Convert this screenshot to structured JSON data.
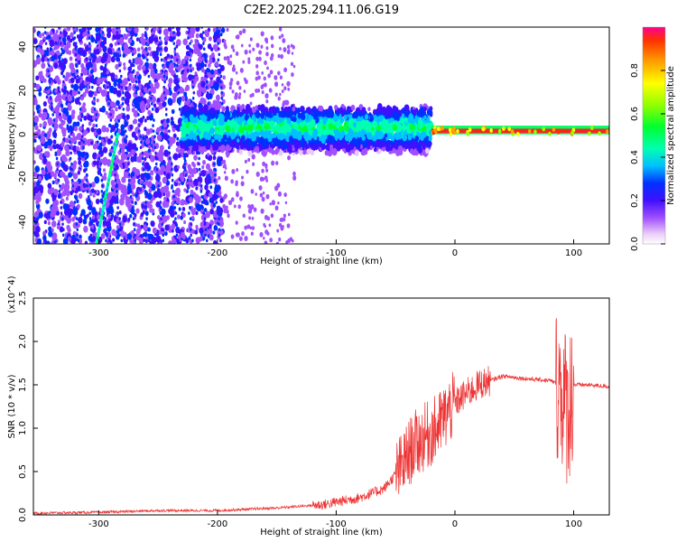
{
  "chart_data": [
    {
      "type": "heatmap",
      "title": "C2E2.2025.294.11.06.G19",
      "xlabel": "Height of straight line (km)",
      "ylabel": "Frequency (Hz)",
      "xlim": [
        -355,
        130
      ],
      "ylim": [
        -50,
        49
      ],
      "xticks": [
        -300,
        -200,
        -100,
        0,
        100
      ],
      "yticks": [
        -40,
        -20,
        0,
        20,
        40
      ],
      "colorbar": {
        "label": "Normalized spectral amplitude",
        "range": [
          0.0,
          1.0
        ],
        "ticks": [
          "0.0",
          "0.2",
          "0.4",
          "0.6",
          "0.8"
        ]
      },
      "regions": [
        {
          "name": "scattered noise",
          "x_range": [
            -355,
            -195
          ],
          "freq_range": [
            -50,
            49
          ],
          "amplitude": "0.05-0.3"
        },
        {
          "name": "sparse noise",
          "x_range": [
            -195,
            -135
          ],
          "freq_range": [
            -50,
            49
          ],
          "amplitude": "0.05-0.1"
        },
        {
          "name": "diagonal streak",
          "x_from": [
            -302,
            -50
          ],
          "x_to": [
            -285,
            0
          ],
          "amplitude": "0.3-0.5"
        },
        {
          "name": "central band",
          "x_range": [
            -230,
            -20
          ],
          "freq_range": [
            -8,
            12
          ],
          "amplitude": "0.1-0.45"
        },
        {
          "name": "tone line",
          "x_range": [
            -20,
            130
          ],
          "freq": 1.5,
          "amplitude": "0.85-1.0"
        }
      ]
    },
    {
      "type": "line",
      "xlabel": "Height of straight line (km)",
      "ylabel": "SNR (10 * v/v)",
      "y_multiplier": "(x10^4)",
      "color": "#ee3333",
      "xlim": [
        -355,
        130
      ],
      "ylim": [
        0,
        2.5
      ],
      "xticks": [
        -300,
        -200,
        -100,
        0,
        100
      ],
      "yticks": [
        "0.0",
        "0.5",
        "1.0",
        "1.5",
        "2.0",
        "2.5"
      ],
      "trend": {
        "x": [
          -355,
          -300,
          -250,
          -200,
          -150,
          -110,
          -80,
          -60,
          -45,
          -35,
          -25,
          -15,
          -5,
          5,
          20,
          30,
          40,
          60,
          80,
          88,
          95,
          100,
          110,
          130
        ],
        "y": [
          0.02,
          0.03,
          0.05,
          0.05,
          0.08,
          0.12,
          0.2,
          0.3,
          0.55,
          0.8,
          0.9,
          1.0,
          1.2,
          1.35,
          1.5,
          1.55,
          1.6,
          1.57,
          1.55,
          1.5,
          1.2,
          1.5,
          1.5,
          1.48
        ]
      }
    }
  ]
}
